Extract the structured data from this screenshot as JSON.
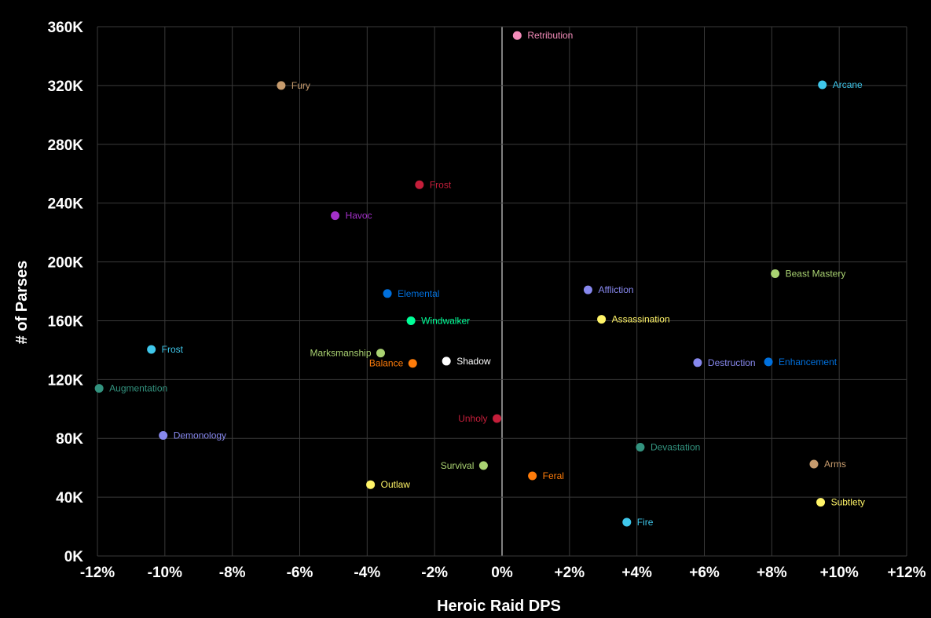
{
  "chart_data": {
    "type": "scatter",
    "xlabel": "Heroic Raid DPS",
    "ylabel": "# of Parses",
    "xlim": [
      -12,
      12
    ],
    "ylim": [
      0,
      360000
    ],
    "grid": true,
    "x_ticks": [
      {
        "value": -12,
        "label": "-12%"
      },
      {
        "value": -10,
        "label": "-10%"
      },
      {
        "value": -8,
        "label": "-8%"
      },
      {
        "value": -6,
        "label": "-6%"
      },
      {
        "value": -4,
        "label": "-4%"
      },
      {
        "value": -2,
        "label": "-2%"
      },
      {
        "value": 0,
        "label": "0%"
      },
      {
        "value": 2,
        "label": "+2%"
      },
      {
        "value": 4,
        "label": "+4%"
      },
      {
        "value": 6,
        "label": "+6%"
      },
      {
        "value": 8,
        "label": "+8%"
      },
      {
        "value": 10,
        "label": "+10%"
      },
      {
        "value": 12,
        "label": "+12%"
      }
    ],
    "y_ticks": [
      {
        "value": 0,
        "label": "0K"
      },
      {
        "value": 40000,
        "label": "40K"
      },
      {
        "value": 80000,
        "label": "80K"
      },
      {
        "value": 120000,
        "label": "120K"
      },
      {
        "value": 160000,
        "label": "160K"
      },
      {
        "value": 200000,
        "label": "200K"
      },
      {
        "value": 240000,
        "label": "240K"
      },
      {
        "value": 280000,
        "label": "280K"
      },
      {
        "value": 320000,
        "label": "320K"
      },
      {
        "value": 360000,
        "label": "360K"
      }
    ],
    "points": [
      {
        "label": "Retribution",
        "x": 0.45,
        "y": 354000,
        "color": "#f48cba",
        "label_side": "right"
      },
      {
        "label": "Fury",
        "x": -6.55,
        "y": 320000,
        "color": "#c69b6d",
        "label_side": "right"
      },
      {
        "label": "Arcane",
        "x": 9.5,
        "y": 320500,
        "color": "#3fc7eb",
        "label_side": "right"
      },
      {
        "label": "Frost",
        "x": -2.45,
        "y": 252500,
        "color": "#c41e3a",
        "label_side": "right"
      },
      {
        "label": "Havoc",
        "x": -4.95,
        "y": 231500,
        "color": "#a330c9",
        "label_side": "right"
      },
      {
        "label": "Beast Mastery",
        "x": 8.1,
        "y": 192000,
        "color": "#aad372",
        "label_side": "right"
      },
      {
        "label": "Affliction",
        "x": 2.55,
        "y": 181000,
        "color": "#8788ee",
        "label_side": "right"
      },
      {
        "label": "Elemental",
        "x": -3.4,
        "y": 178500,
        "color": "#0070dd",
        "label_side": "right"
      },
      {
        "label": "Assassination",
        "x": 2.95,
        "y": 161000,
        "color": "#fff468",
        "label_side": "right"
      },
      {
        "label": "Windwalker",
        "x": -2.7,
        "y": 160000,
        "color": "#00ff98",
        "label_side": "right"
      },
      {
        "label": "Frost",
        "x": -10.4,
        "y": 140500,
        "color": "#3fc7eb",
        "label_side": "right"
      },
      {
        "label": "Marksmanship",
        "x": -3.6,
        "y": 138000,
        "color": "#aad372",
        "label_side": "left"
      },
      {
        "label": "Shadow",
        "x": -1.65,
        "y": 132500,
        "color": "#ffffff",
        "label_side": "right"
      },
      {
        "label": "Balance",
        "x": -2.65,
        "y": 131000,
        "color": "#ff7c0a",
        "label_side": "left"
      },
      {
        "label": "Destruction",
        "x": 5.8,
        "y": 131500,
        "color": "#8788ee",
        "label_side": "right"
      },
      {
        "label": "Enhancement",
        "x": 7.9,
        "y": 132000,
        "color": "#0070dd",
        "label_side": "right"
      },
      {
        "label": "Augmentation",
        "x": -11.95,
        "y": 114000,
        "color": "#33937f",
        "label_side": "right"
      },
      {
        "label": "Unholy",
        "x": -0.15,
        "y": 93500,
        "color": "#c41e3a",
        "label_side": "left"
      },
      {
        "label": "Demonology",
        "x": -10.05,
        "y": 82000,
        "color": "#8788ee",
        "label_side": "right"
      },
      {
        "label": "Devastation",
        "x": 4.1,
        "y": 74000,
        "color": "#33937f",
        "label_side": "right"
      },
      {
        "label": "Arms",
        "x": 9.25,
        "y": 62500,
        "color": "#c69b6d",
        "label_side": "right"
      },
      {
        "label": "Survival",
        "x": -0.55,
        "y": 61500,
        "color": "#aad372",
        "label_side": "left"
      },
      {
        "label": "Feral",
        "x": 0.9,
        "y": 54500,
        "color": "#ff7c0a",
        "label_side": "right"
      },
      {
        "label": "Outlaw",
        "x": -3.9,
        "y": 48500,
        "color": "#fff468",
        "label_side": "right"
      },
      {
        "label": "Subtlety",
        "x": 9.45,
        "y": 36500,
        "color": "#fff468",
        "label_side": "right"
      },
      {
        "label": "Fire",
        "x": 3.7,
        "y": 23000,
        "color": "#3fc7eb",
        "label_side": "right"
      }
    ]
  }
}
